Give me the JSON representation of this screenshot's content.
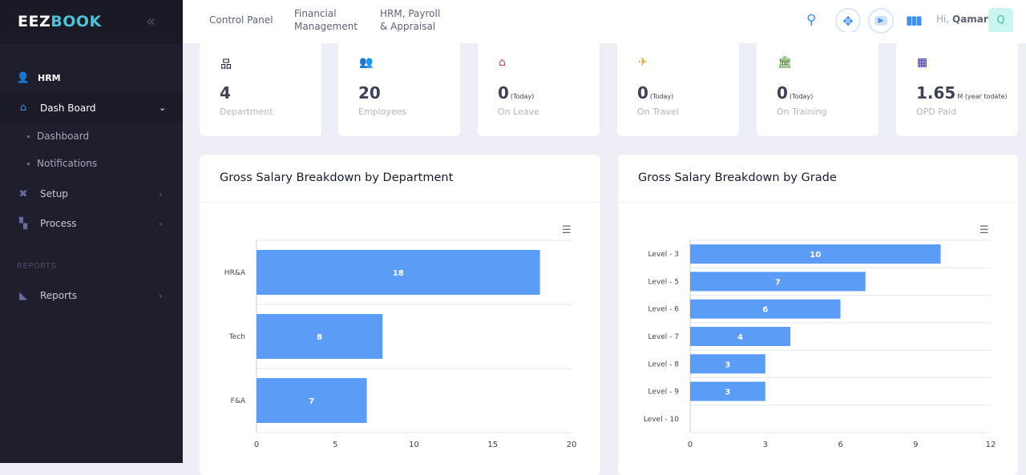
{
  "sidebar": {
    "logo_a": "EEZ",
    "logo_b": "BOOK",
    "hrm": "HRM",
    "dashboard": "Dash Board",
    "sub": [
      "Dashboard",
      "Notifications"
    ],
    "setup": "Setup",
    "process": "Process",
    "section": "REPORTS",
    "reports": "Reports"
  },
  "header": {
    "nav": [
      "Control Panel",
      "Financial Management",
      "HRM, Payroll & Appraisal"
    ],
    "greeting": "Hi,",
    "user": "Qamar",
    "avatar": "Q"
  },
  "stats": [
    {
      "value": "4",
      "suffix": "",
      "label": "Department",
      "icon": "sitemap-icon",
      "color": "#181c32"
    },
    {
      "value": "20",
      "suffix": "",
      "label": "Employees",
      "icon": "users-icon",
      "color": "#181c32"
    },
    {
      "value": "0",
      "suffix": "(Today)",
      "label": "On Leave",
      "icon": "house-user-icon",
      "color": "#e53935"
    },
    {
      "value": "0",
      "suffix": "(Today)",
      "label": "On Travel",
      "icon": "plane-icon",
      "color": "#f0a020"
    },
    {
      "value": "0",
      "suffix": "(Today)",
      "label": "On Training",
      "icon": "bank-icon",
      "color": "#3a7d1a"
    },
    {
      "value": "1.65",
      "suffix": "M (year todate)",
      "label": "OPD Paid",
      "icon": "hospital-user-icon",
      "color": "#2a1fe0"
    }
  ],
  "chart_data": [
    {
      "type": "bar",
      "orientation": "horizontal",
      "title": "Gross Salary Breakdown by Department",
      "categories": [
        "HR&A",
        "Tech",
        "F&A"
      ],
      "values": [
        18,
        8,
        7
      ],
      "xlim": [
        0,
        20
      ],
      "xticks": [
        0,
        5,
        10,
        15,
        20
      ],
      "color": "#5b9cf7",
      "grid": true
    },
    {
      "type": "bar",
      "orientation": "horizontal",
      "title": "Gross Salary Breakdown by Grade",
      "categories": [
        "Level - 3",
        "Level - 5",
        "Level - 6",
        "Level - 7",
        "Level - 8",
        "Level - 9",
        "Level - 10"
      ],
      "values": [
        10,
        7,
        6,
        4,
        3,
        3,
        0
      ],
      "xlim": [
        0,
        12
      ],
      "xticks": [
        0,
        3,
        6,
        9,
        12
      ],
      "color": "#5b9cf7",
      "grid": true
    }
  ]
}
